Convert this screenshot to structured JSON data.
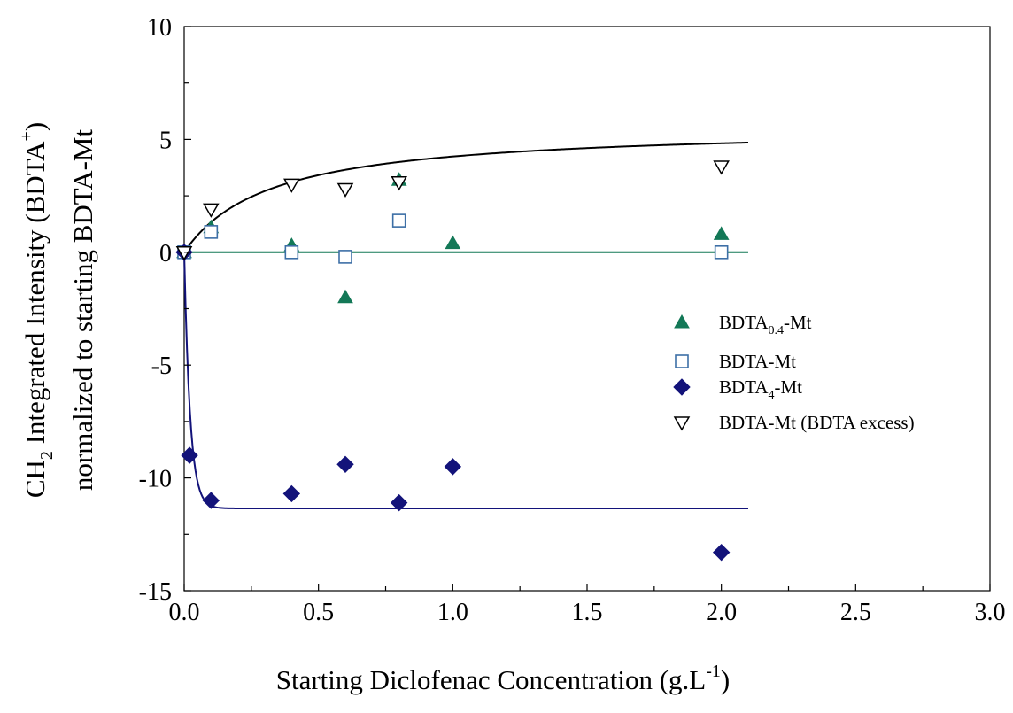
{
  "chart_data": {
    "type": "scatter",
    "title": "",
    "xlabel": {
      "main": "Starting Diclofenac Concentration (g.L",
      "sup": "-1",
      "end": ")"
    },
    "ylabel": {
      "line1_a": "CH",
      "line1_sub": "2",
      "line1_b": " Integrated Intensity (BDTA",
      "line1_sup": "+",
      "line1_c": ")",
      "line2": "normalized to starting BDTA-Mt"
    },
    "xlim": [
      0,
      3
    ],
    "ylim": [
      -15,
      10
    ],
    "x_ticks": [
      {
        "value": 0,
        "label": "0.0"
      },
      {
        "value": 0.5,
        "label": "0.5"
      },
      {
        "value": 1.0,
        "label": "1.0"
      },
      {
        "value": 1.5,
        "label": "1.5"
      },
      {
        "value": 2.0,
        "label": "2.0"
      },
      {
        "value": 2.5,
        "label": "2.5"
      },
      {
        "value": 3.0,
        "label": "3.0"
      }
    ],
    "y_ticks": [
      {
        "value": 10,
        "label": "10"
      },
      {
        "value": 5,
        "label": "5"
      },
      {
        "value": 0,
        "label": "0"
      },
      {
        "value": -5,
        "label": "-5"
      },
      {
        "value": -10,
        "label": "-10"
      },
      {
        "value": -15,
        "label": "-15"
      }
    ],
    "grid": false,
    "legend_position": "right",
    "series": [
      {
        "name": "BDTA",
        "name_sub": "0.4",
        "name_end": "-Mt",
        "marker": "triangle-up",
        "color": "#137857",
        "points": [
          [
            0,
            0
          ],
          [
            0.1,
            1.1
          ],
          [
            0.4,
            0.3
          ],
          [
            0.6,
            -2.0
          ],
          [
            0.8,
            3.2
          ],
          [
            1.0,
            0.4
          ],
          [
            2.0,
            0.8
          ]
        ]
      },
      {
        "name": "BDTA-Mt",
        "name_sub": "",
        "name_end": "",
        "marker": "square-open",
        "color": "#3d6fa6",
        "points": [
          [
            0,
            0
          ],
          [
            0.1,
            0.9
          ],
          [
            0.4,
            0
          ],
          [
            0.6,
            -0.2
          ],
          [
            0.8,
            1.4
          ],
          [
            2.0,
            0
          ]
        ]
      },
      {
        "name": "BDTA",
        "name_sub": "4",
        "name_end": "-Mt",
        "marker": "diamond",
        "color": "#13137a",
        "points": [
          [
            0,
            0
          ],
          [
            0.02,
            -9.0
          ],
          [
            0.1,
            -11.0
          ],
          [
            0.4,
            -10.7
          ],
          [
            0.6,
            -9.4
          ],
          [
            0.8,
            -11.1
          ],
          [
            1.0,
            -9.5
          ],
          [
            2.0,
            -13.3
          ]
        ]
      },
      {
        "name": "BDTA-Mt (BDTA excess)",
        "name_sub": "",
        "name_end": "",
        "marker": "triangle-down-open",
        "color": "#000000",
        "points": [
          [
            0,
            0
          ],
          [
            0.1,
            1.9
          ],
          [
            0.4,
            3.0
          ],
          [
            0.6,
            2.8
          ],
          [
            0.8,
            3.1
          ],
          [
            2.0,
            3.8
          ]
        ]
      }
    ],
    "fit_lines": [
      {
        "for": "BDTA-Mt (BDTA excess)",
        "color": "#000000",
        "model": "langmuir",
        "max": 5.6,
        "k": 0.32,
        "x_end": 2.1
      },
      {
        "for": "BDTA-Mt",
        "color": "#137857",
        "model": "constant",
        "value": 0,
        "x_end": 2.1
      },
      {
        "for": "BDTA4-Mt",
        "color": "#13137a",
        "model": "exp_decay",
        "plateau": -11.35,
        "rate": 0.022,
        "x_end": 2.1
      }
    ]
  }
}
